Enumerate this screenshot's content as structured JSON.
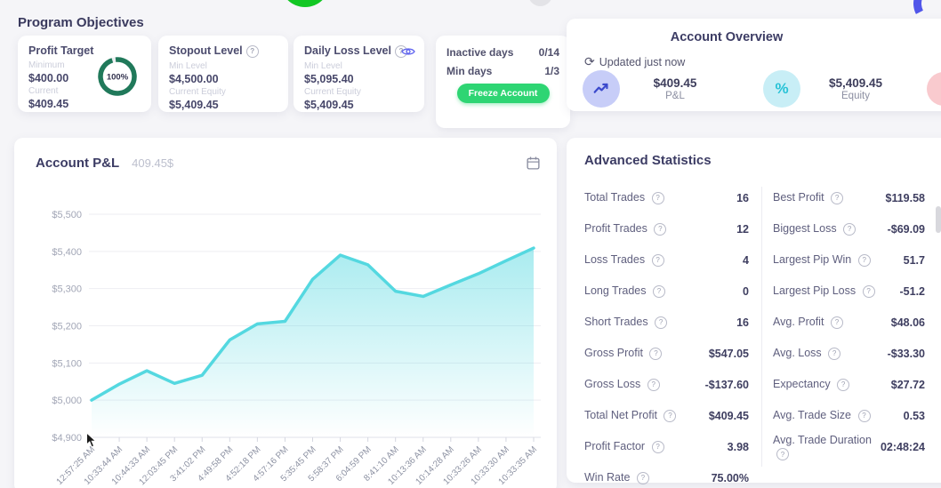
{
  "header": {
    "program_objectives_title": "Program Objectives"
  },
  "objectives": {
    "profit_target": {
      "title": "Profit Target",
      "min_label": "Minimum",
      "min_value": "$400.00",
      "current_label": "Current",
      "current_value": "$409.45",
      "progress_pct": "100%"
    },
    "stopout_level": {
      "title": "Stopout Level",
      "min_label": "Min Level",
      "min_value": "$4,500.00",
      "current_label": "Current Equity",
      "current_value": "$5,409.45"
    },
    "daily_loss_level": {
      "title": "Daily Loss Level",
      "min_label": "Min Level",
      "min_value": "$5,095.40",
      "current_label": "Current Equity",
      "current_value": "$5,409.45"
    },
    "activity": {
      "inactive_days_label": "Inactive days",
      "inactive_days_value": "0/14",
      "min_days_label": "Min days",
      "min_days_value": "1/3",
      "freeze_button_label": "Freeze Account"
    }
  },
  "account_overview": {
    "title": "Account Overview",
    "updated_text": "Updated just now",
    "stats": [
      {
        "value": "$409.45",
        "label": "P&L",
        "icon": "trend-up-icon"
      },
      {
        "value": "$5,409.45",
        "label": "Equity",
        "icon": "percent-icon"
      }
    ]
  },
  "pnl_card": {
    "title": "Account P&L",
    "subtitle": "409.45$"
  },
  "chart_data": {
    "type": "area",
    "title": "Account P&L",
    "x": [
      "12:57:25 AM",
      "10:33:44 AM",
      "10:44:33 AM",
      "12:03:45 PM",
      "3:41:02 PM",
      "4:49:58 PM",
      "4:52:18 PM",
      "4:57:16 PM",
      "5:35:45 PM",
      "5:58:37 PM",
      "6:04:59 PM",
      "8:41:10 AM",
      "10:13:36 AM",
      "10:14:28 AM",
      "10:33:26 AM",
      "10:33:30 AM",
      "10:33:35 AM"
    ],
    "values": [
      5000,
      5043,
      5079,
      5045,
      5067,
      5162,
      5205,
      5212,
      5325,
      5390,
      5364,
      5293,
      5279,
      5310,
      5340,
      5375,
      5409
    ],
    "ylim": [
      4900,
      5500
    ],
    "yticks": [
      "$5,500",
      "$5,400",
      "$5,300",
      "$5,200",
      "$5,100",
      "$5,000",
      "$4,900"
    ],
    "ytick_values": [
      5500,
      5400,
      5300,
      5200,
      5100,
      5000,
      4900
    ],
    "grid": true,
    "legend": "none",
    "line_color": "#54d8e0"
  },
  "advanced_statistics": {
    "title": "Advanced Statistics",
    "left_column": [
      {
        "label": "Total Trades",
        "value": "16"
      },
      {
        "label": "Profit Trades",
        "value": "12"
      },
      {
        "label": "Loss Trades",
        "value": "4"
      },
      {
        "label": "Long Trades",
        "value": "0"
      },
      {
        "label": "Short Trades",
        "value": "16"
      },
      {
        "label": "Gross Profit",
        "value": "$547.05"
      },
      {
        "label": "Gross Loss",
        "value": "-$137.60"
      },
      {
        "label": "Total Net Profit",
        "value": "$409.45"
      },
      {
        "label": "Profit Factor",
        "value": "3.98"
      },
      {
        "label": "Win Rate",
        "value": "75.00%"
      }
    ],
    "right_column": [
      {
        "label": "Best Profit",
        "value": "$119.58"
      },
      {
        "label": "Biggest Loss",
        "value": "-$69.09"
      },
      {
        "label": "Largest Pip Win",
        "value": "51.7"
      },
      {
        "label": "Largest Pip Loss",
        "value": "-51.2"
      },
      {
        "label": "Avg. Profit",
        "value": "$48.06"
      },
      {
        "label": "Avg. Loss",
        "value": "-$33.30"
      },
      {
        "label": "Expectancy",
        "value": "$27.72"
      },
      {
        "label": "Avg. Trade Size",
        "value": "0.53"
      },
      {
        "label": "Avg. Trade Duration",
        "value": "02:48:24"
      }
    ]
  },
  "colors": {
    "chart_line": "#54d8e0",
    "donut_green": "#20795a",
    "freeze_green": "#2ed573",
    "pnl_icon_blue": "#3b49cc",
    "equity_icon_cyan": "#27c2d6",
    "eye_indigo": "#6064ef",
    "heading_navy": "#3c3c64"
  }
}
